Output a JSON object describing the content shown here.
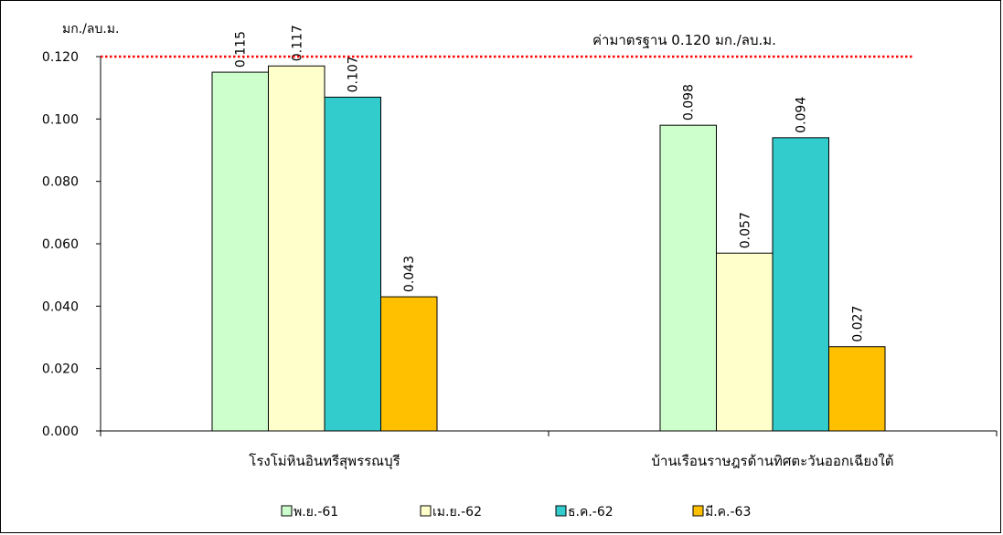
{
  "chart_data": {
    "type": "bar",
    "ylabel": "มก./ลบ.ม.",
    "ylim": [
      0,
      0.12
    ],
    "yticks": [
      "0.000",
      "0.020",
      "0.040",
      "0.060",
      "0.080",
      "0.100",
      "0.120"
    ],
    "categories": [
      "โรงโม่หินอินทรีสุพรรณบุรี",
      "บ้านเรือนราษฎรด้านทิศตะวันออกเฉียงใต้"
    ],
    "series": [
      {
        "name": "พ.ย.-61",
        "color": "#ccffcc",
        "values": [
          0.115,
          0.098
        ],
        "labels": [
          "0.115",
          "0.098"
        ]
      },
      {
        "name": "เม.ย.-62",
        "color": "#ffffcc",
        "values": [
          0.117,
          0.057
        ],
        "labels": [
          "0.117",
          "0.057"
        ]
      },
      {
        "name": "ธ.ค.-62",
        "color": "#33cccc",
        "values": [
          0.107,
          0.094
        ],
        "labels": [
          "0.107",
          "0.094"
        ]
      },
      {
        "name": "มี.ค.-63",
        "color": "#ffc000",
        "values": [
          0.043,
          0.027
        ],
        "labels": [
          "0.043",
          "0.027"
        ]
      }
    ],
    "reference_line": {
      "value": 0.12,
      "label": "ค่ามาตรฐาน 0.120 มก./ลบ.ม.",
      "color": "#ff0000",
      "style": "dotted"
    },
    "grid": false,
    "legend_position": "bottom"
  }
}
